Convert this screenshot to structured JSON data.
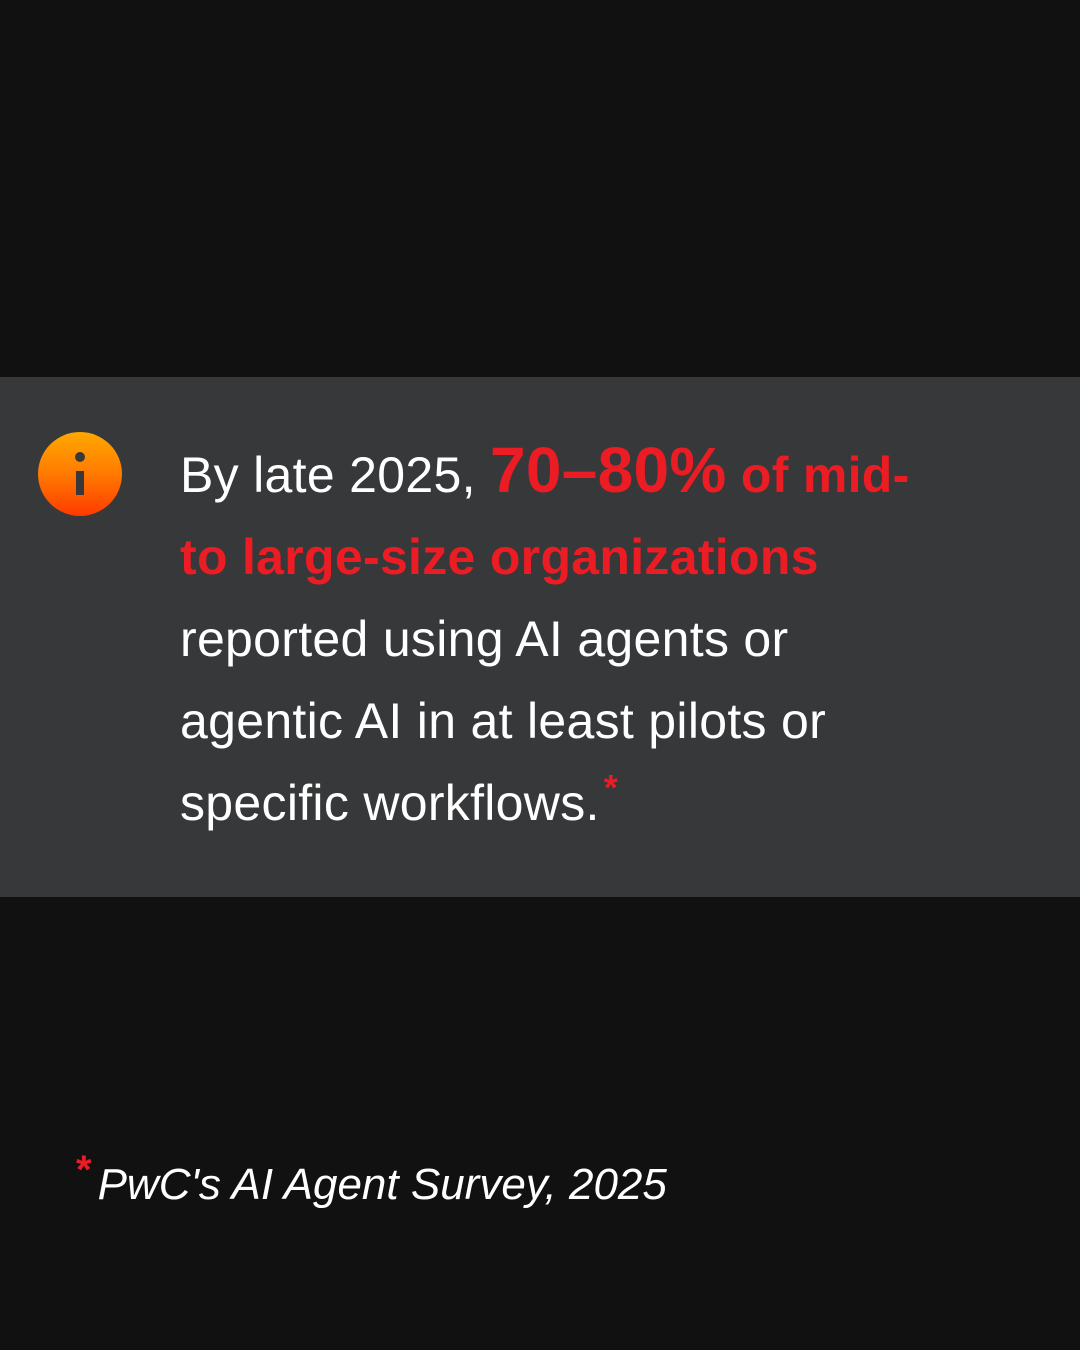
{
  "statement": {
    "intro": "By late 2025, ",
    "highlight_number": "70–80%",
    "highlight_rest_1": " of mid-",
    "highlight_rest_2": "to large-size organizations",
    "line3": "reported using AI agents or",
    "line4": "agentic AI in at least pilots or",
    "line5": "specific workflows.",
    "asterisk": "*"
  },
  "footnote": {
    "asterisk": "*",
    "source": "PwC's AI Agent Survey, 2025"
  },
  "icon": "info-icon",
  "colors": {
    "background": "#111111",
    "band": "#37383a",
    "accent": "#ec1c24",
    "icon_gradient": [
      "#ffa800",
      "#ff3a00"
    ]
  }
}
